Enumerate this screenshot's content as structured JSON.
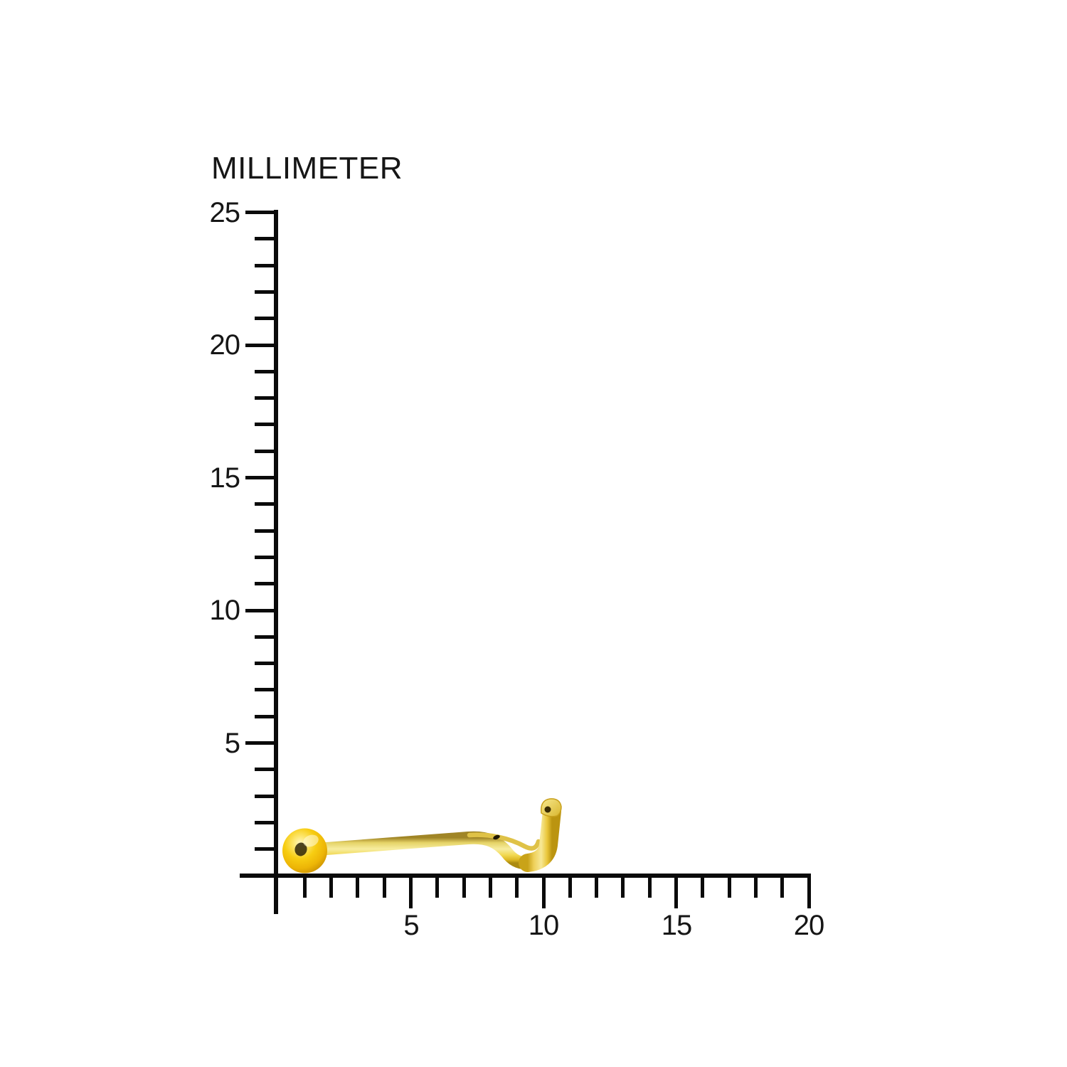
{
  "chart_data": {
    "type": "ruler-diagram",
    "title": "MILLIMETER",
    "unit": "mm",
    "grid": false,
    "y_axis": {
      "min": 0,
      "max": 25,
      "minor_step": 1,
      "major_step": 5,
      "labels": [
        25,
        20,
        15,
        10,
        5
      ],
      "side": "left"
    },
    "x_axis": {
      "min": 0,
      "max": 20,
      "minor_step": 1,
      "major_step": 5,
      "labels": [
        5,
        10,
        15,
        20
      ],
      "side": "bottom"
    },
    "object": {
      "name": "gold nose screw stud with ball end and curved J-post",
      "material_color": "#F5C90A",
      "span_x_mm": [
        0.2,
        10.7
      ],
      "span_y_mm": [
        0.1,
        2.8
      ],
      "overall_length_mm": 10.5,
      "ball_diameter_mm": 1.7,
      "wire_thickness_mm": 0.5,
      "hook_height_mm": 2.6
    },
    "colors": {
      "axis": "#0a0a0a",
      "text": "#161616",
      "background": "#ffffff",
      "gold_highlight": "#fff3b0",
      "gold_mid": "#f6c90f",
      "gold_shadow": "#a67c04"
    }
  }
}
